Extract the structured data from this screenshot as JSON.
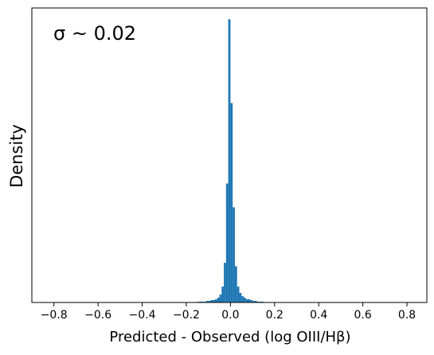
{
  "chart_data": {
    "type": "histogram",
    "annotation": "σ ~  0.02",
    "xlabel": "Predicted - Observed (log OIII/Hβ)",
    "ylabel": "Density",
    "color": "#1f77b4",
    "bins": [
      -0.15,
      -0.14,
      -0.13,
      -0.12,
      -0.11,
      -0.1,
      -0.09,
      -0.08,
      -0.07,
      -0.06,
      -0.05,
      -0.04,
      -0.03,
      -0.02,
      -0.01,
      0,
      0.01,
      0.02,
      0.03,
      0.04,
      0.05,
      0.06,
      0.07,
      0.08,
      0.09,
      0.1,
      0.11,
      0.12,
      0.13,
      0.14,
      0.15
    ],
    "values": [
      0.07,
      0.07,
      0.07,
      0.07,
      0.14,
      0.14,
      0.21,
      0.21,
      0.28,
      0.42,
      0.7,
      1.4,
      3.5,
      10.5,
      25,
      17.6,
      8.4,
      3.2,
      1.4,
      0.84,
      0.56,
      0.42,
      0.28,
      0.28,
      0.21,
      0.14,
      0.14,
      0.07,
      0.07,
      0.07
    ],
    "xlim": [
      -0.9,
      0.89
    ],
    "ylim": [
      0,
      26
    ],
    "xticks": [
      {
        "value": -0.8,
        "label": "−0.8"
      },
      {
        "value": -0.6,
        "label": "−0.6"
      },
      {
        "value": -0.4,
        "label": "−0.4"
      },
      {
        "value": -0.2,
        "label": "−0.2"
      },
      {
        "value": 0,
        "label": "0.0"
      },
      0.2,
      0.4,
      0.6,
      0.8
    ]
  }
}
